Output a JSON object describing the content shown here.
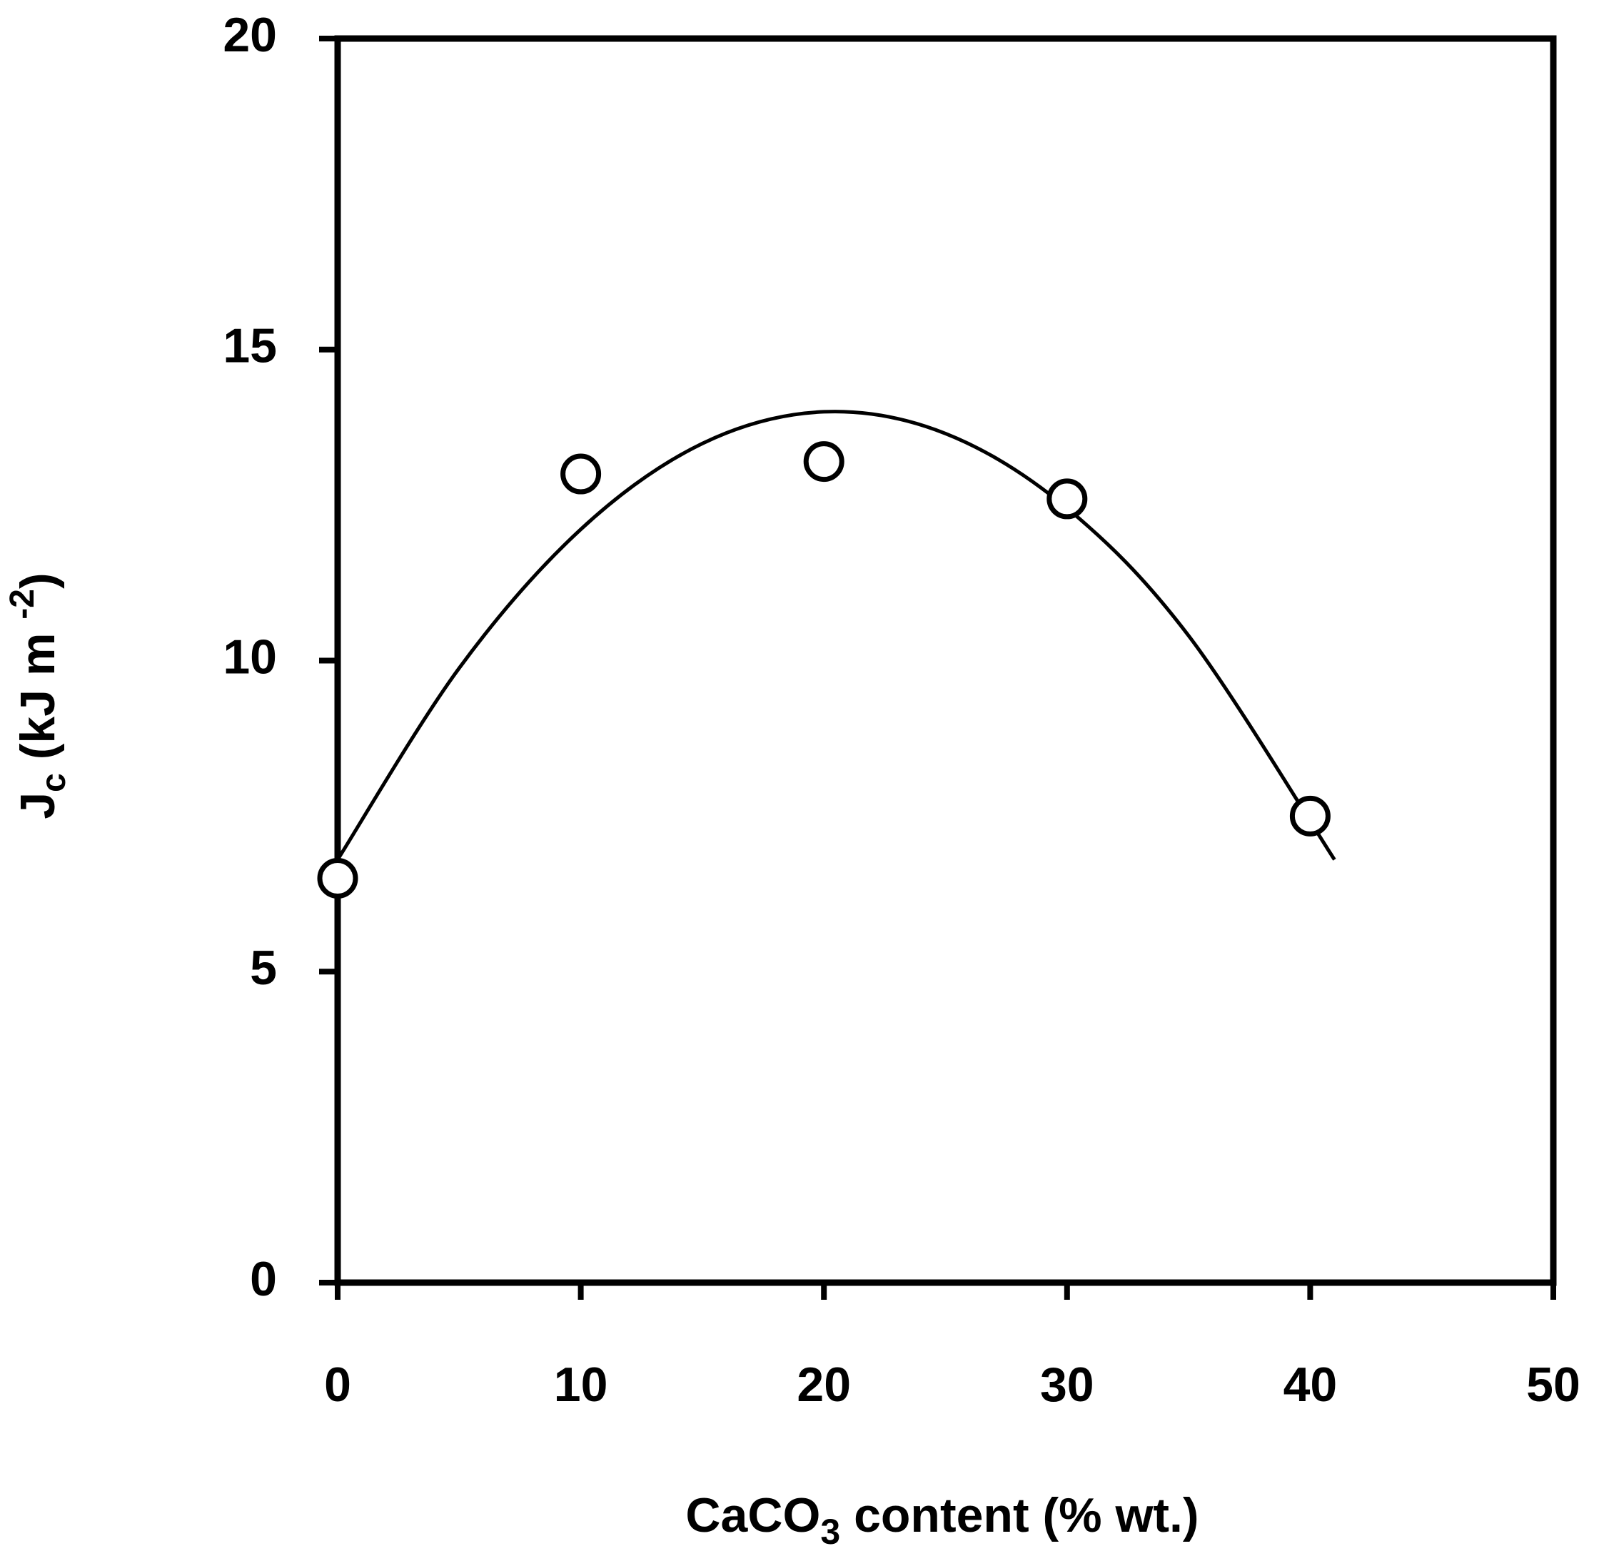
{
  "chart_data": {
    "type": "scatter",
    "x_label": [
      "CaCO",
      "3",
      " content (% wt.)"
    ],
    "y_label": [
      "J",
      "c",
      " (kJ m ",
      "-2",
      ")"
    ],
    "points": {
      "x": [
        0,
        10,
        20,
        30,
        40
      ],
      "y": [
        6.5,
        13.0,
        13.2,
        12.6,
        7.5
      ],
      "color": "#000000"
    },
    "fit": {
      "x": [
        0,
        5,
        10,
        15,
        20,
        25,
        30,
        35,
        41
      ],
      "y": [
        6.8,
        9.88,
        12.11,
        13.49,
        14.0,
        13.65,
        12.45,
        10.4,
        6.8
      ],
      "color": "#000000"
    },
    "xlim": [
      0,
      50
    ],
    "xticks": [
      0,
      10,
      20,
      30,
      40,
      50
    ],
    "ylim": [
      0,
      20
    ],
    "yticks": [
      0,
      5,
      10,
      15,
      20
    ],
    "grid": false
  }
}
